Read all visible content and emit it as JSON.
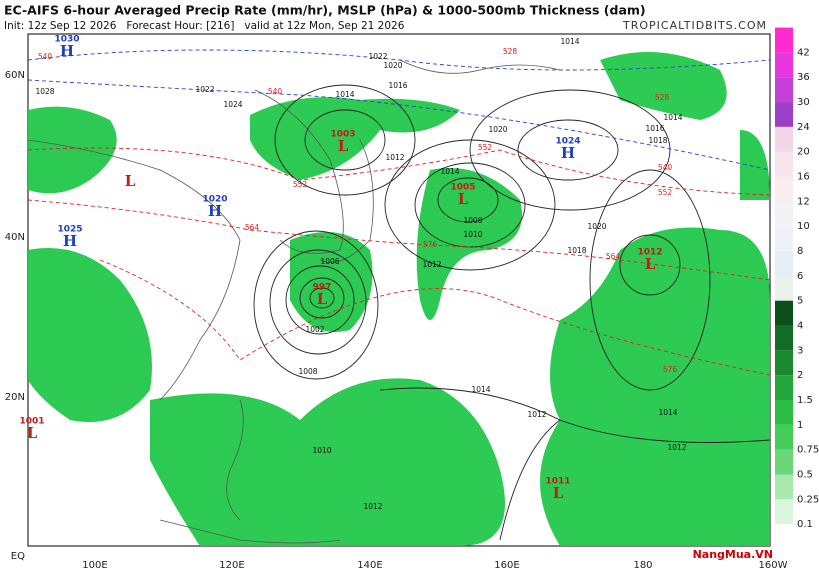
{
  "header": {
    "title": "EC-AIFS 6-hour Averaged Precip Rate (mm/hr), MSLP (hPa) & 1000-500mb Thickness (dam)",
    "subtitle": "Init: 12z Sep 12 2026   Forecast Hour: [216]   valid at 12z Mon, Sep 21 2026",
    "source": "TROPICALTIDBITS.COM"
  },
  "map": {
    "lat_labels": [
      "60N",
      "40N",
      "20N",
      "EQ"
    ],
    "lon_labels": [
      "100E",
      "120E",
      "140E",
      "160E",
      "180",
      "160W"
    ],
    "centers": [
      {
        "symbol": "H",
        "pressure": "1030"
      },
      {
        "symbol": "L",
        "pressure": "1003"
      },
      {
        "symbol": "H",
        "pressure": "1024"
      },
      {
        "symbol": "L"
      },
      {
        "symbol": "H",
        "pressure": "1020"
      },
      {
        "symbol": "L",
        "pressure": "1005"
      },
      {
        "symbol": "H",
        "pressure": "1025"
      },
      {
        "symbol": "L",
        "pressure": "1012"
      },
      {
        "symbol": "L",
        "pressure": "997"
      },
      {
        "symbol": "L",
        "pressure": "1001"
      },
      {
        "symbol": "L",
        "pressure": "1011"
      }
    ],
    "isobar_labels": [
      "1014",
      "1022",
      "1020",
      "1016",
      "1028",
      "1022",
      "1014",
      "1024",
      "1012",
      "1014",
      "1008",
      "1010",
      "1012",
      "1006",
      "1002",
      "1008",
      "1014",
      "1012",
      "1014",
      "1012",
      "1010",
      "1012",
      "1018",
      "1020",
      "1016",
      "1014",
      "1020",
      "1018"
    ],
    "thickness_labels": [
      "528",
      "540",
      "552",
      "552",
      "564",
      "576",
      "564",
      "576",
      "540",
      "552",
      "528",
      "540"
    ]
  },
  "colorbar": {
    "labels": [
      "42",
      "36",
      "30",
      "24",
      "20",
      "16",
      "12",
      "10",
      "8",
      "6",
      "5",
      "4",
      "3",
      "2",
      "1.5",
      "1",
      "0.75",
      "0.5",
      "0.25",
      "0.1"
    ]
  },
  "watermark": "NangMua.VN"
}
